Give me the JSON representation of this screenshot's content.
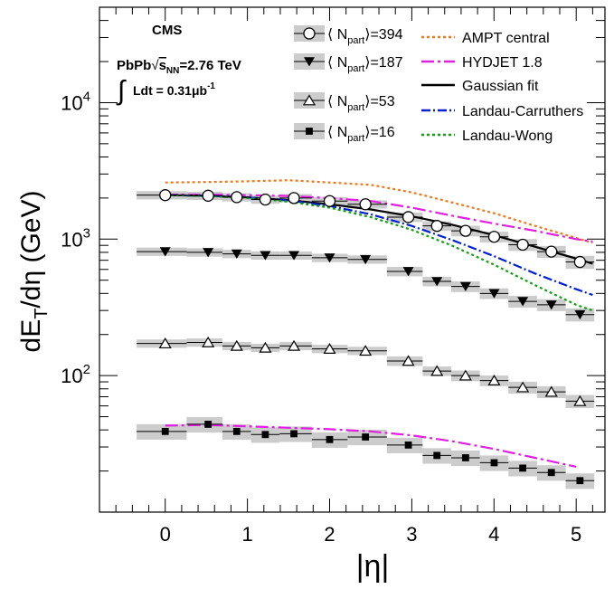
{
  "chart_data": {
    "type": "scatter",
    "ylabel": "dE_T/dη (GeV)",
    "xlabel": "|η|",
    "xlim": [
      -0.8,
      5.35
    ],
    "ylim": [
      10,
      50000
    ],
    "y_scale": "log",
    "x_ticks": [
      0,
      1,
      2,
      3,
      4,
      5
    ],
    "x_tick_labels": [
      "0",
      "1",
      "2",
      "3",
      "4",
      "5"
    ],
    "y_tick_labels": [
      {
        "value": 100,
        "base": "10",
        "exp": "2"
      },
      {
        "value": 1000,
        "base": "10",
        "exp": "3"
      },
      {
        "value": 10000,
        "base": "10",
        "exp": "4"
      }
    ],
    "grid": false,
    "legend_position": "top",
    "annotations": {
      "experiment": "CMS",
      "system": "PbPb",
      "energy_label": "s",
      "energy_sub": "NN",
      "energy_value": "=2.76 TeV",
      "lumi_label": "Ldt = 0.31",
      "lumi_unit": "μb",
      "lumi_exp": "-1"
    },
    "bin_centers": [
      0.0,
      0.522,
      0.87,
      1.218,
      1.566,
      2.0,
      2.436,
      2.958,
      3.306,
      3.654,
      4.002,
      4.35,
      4.698,
      5.046
    ],
    "series": [
      {
        "name": "⟨N_part⟩=394",
        "legend_label": "⟨ N",
        "legend_sub": "part",
        "legend_value": "⟩=394",
        "marker": "circle-open",
        "values": [
          2100,
          2080,
          2030,
          1950,
          2000,
          1900,
          1800,
          1450,
          1250,
          1150,
          1040,
          910,
          810,
          680
        ]
      },
      {
        "name": "⟨N_part⟩=187",
        "legend_label": "⟨ N",
        "legend_sub": "part",
        "legend_value": "⟩=187",
        "marker": "triangle-down-filled",
        "values": [
          810,
          800,
          780,
          760,
          760,
          730,
          710,
          580,
          490,
          450,
          400,
          350,
          330,
          280
        ]
      },
      {
        "name": "⟨N_part⟩=53",
        "legend_label": "⟨ N",
        "legend_sub": "part",
        "legend_value": "⟩=53",
        "marker": "triangle-up-open",
        "values": [
          172,
          175,
          165,
          160,
          165,
          157,
          152,
          128,
          108,
          100,
          92,
          82,
          76,
          65
        ]
      },
      {
        "name": "⟨N_part⟩=16",
        "legend_label": "⟨ N",
        "legend_sub": "part",
        "legend_value": "⟩=16",
        "marker": "square-filled",
        "values": [
          39,
          44,
          39,
          37,
          37.5,
          34,
          35.5,
          31,
          26,
          25,
          23,
          21,
          19.5,
          17
        ]
      }
    ],
    "curves": [
      {
        "name": "AMPT central",
        "color": "#f07820",
        "dash": "3,3",
        "x": [
          0.0,
          0.5,
          1.0,
          1.5,
          2.0,
          2.5,
          3.0,
          3.5,
          4.0,
          4.5,
          5.0,
          5.2
        ],
        "y": [
          2600,
          2620,
          2650,
          2700,
          2600,
          2500,
          2200,
          1850,
          1550,
          1250,
          1020,
          940
        ]
      },
      {
        "name": "HYDJET 1.8",
        "color": "#e020e0",
        "dash": "14,4,3,4",
        "x": [
          0.0,
          0.5,
          1.0,
          1.5,
          2.0,
          2.5,
          3.0,
          3.5,
          4.0,
          4.5,
          5.0,
          5.2
        ],
        "y": [
          2120,
          2120,
          2100,
          2070,
          2000,
          1900,
          1700,
          1480,
          1300,
          1150,
          1000,
          960
        ]
      },
      {
        "name": "HYDJET 1.8 (N_part=16)",
        "color": "#e020e0",
        "dash": "14,4,3,4",
        "x": [
          0.0,
          0.5,
          1.0,
          1.5,
          2.0,
          2.5,
          3.0,
          3.5,
          4.0,
          4.5,
          5.0
        ],
        "y": [
          43,
          43.5,
          42.5,
          41.5,
          40.5,
          39,
          36.5,
          33,
          29,
          25,
          21.5
        ]
      },
      {
        "name": "Gaussian fit",
        "color": "#000000",
        "dash": "none",
        "x": [
          0.0,
          0.5,
          1.0,
          1.5,
          2.0,
          2.5,
          3.0,
          3.5,
          4.0,
          4.5,
          5.0,
          5.2
        ],
        "y": [
          2100,
          2080,
          2020,
          1930,
          1800,
          1650,
          1470,
          1270,
          1070,
          880,
          720,
          660
        ]
      },
      {
        "name": "Landau-Carruthers",
        "color": "#0020d0",
        "dash": "10,3,2,3",
        "x": [
          0.0,
          0.5,
          1.0,
          1.5,
          2.0,
          2.5,
          3.0,
          3.5,
          4.0,
          4.5,
          5.0,
          5.2
        ],
        "y": [
          2100,
          2080,
          2020,
          1920,
          1750,
          1520,
          1250,
          980,
          750,
          560,
          430,
          390
        ]
      },
      {
        "name": "Landau-Wong",
        "color": "#10a010",
        "dash": "3,3",
        "x": [
          0.0,
          0.5,
          1.0,
          1.5,
          2.0,
          2.5,
          3.0,
          3.5,
          4.0,
          4.5,
          5.0,
          5.2
        ],
        "y": [
          2100,
          2070,
          2000,
          1880,
          1700,
          1450,
          1170,
          890,
          650,
          460,
          330,
          300
        ]
      }
    ],
    "curve_legend": [
      "AMPT central",
      "HYDJET 1.8",
      "Gaussian fit",
      "Landau-Carruthers",
      "Landau-Wong"
    ]
  }
}
